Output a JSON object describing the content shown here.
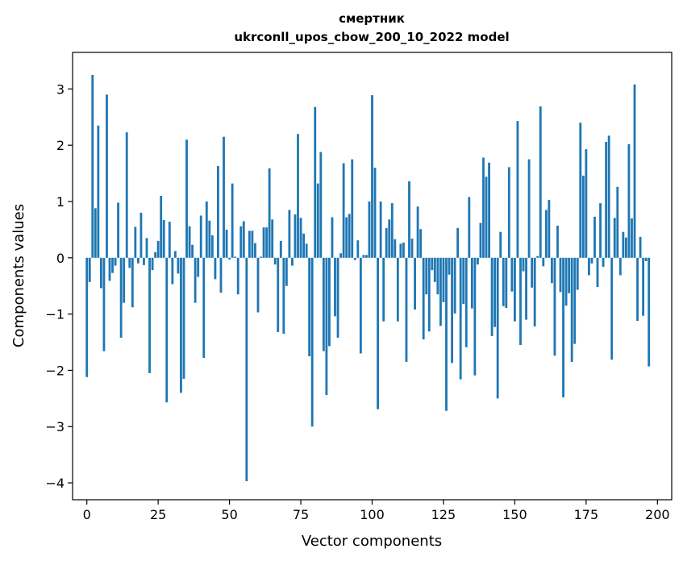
{
  "chart_data": {
    "type": "bar",
    "title": "смертник",
    "subtitle": "ukrconll_upos_cbow_200_10_2022 model",
    "xlabel": "Vector components",
    "ylabel": "Components values",
    "xlim": [
      -5,
      205
    ],
    "ylim": [
      -4.3,
      3.65
    ],
    "xticks": [
      0,
      25,
      50,
      75,
      100,
      125,
      150,
      175,
      200
    ],
    "yticks": [
      -4,
      -3,
      -2,
      -1,
      0,
      1,
      2,
      3
    ],
    "xtick_labels": [
      "0",
      "25",
      "50",
      "75",
      "100",
      "125",
      "150",
      "175",
      "200"
    ],
    "ytick_labels": [
      "−4",
      "−3",
      "−2",
      "−1",
      "0",
      "1",
      "2",
      "3"
    ],
    "bar_color": "#1f77b4",
    "grid": false,
    "values": [
      -2.12,
      -0.43,
      3.25,
      0.88,
      2.35,
      -0.54,
      -1.66,
      2.9,
      -0.41,
      -0.27,
      -0.14,
      0.98,
      -1.42,
      -0.8,
      2.23,
      -0.18,
      -0.88,
      0.55,
      -0.1,
      0.8,
      -0.13,
      0.35,
      -2.05,
      -0.22,
      0.1,
      0.3,
      1.1,
      0.67,
      -2.57,
      0.64,
      -0.47,
      0.12,
      -0.28,
      -2.4,
      -2.15,
      2.1,
      0.56,
      0.23,
      -0.8,
      -0.34,
      0.75,
      -1.78,
      1.0,
      0.66,
      0.4,
      -0.38,
      1.63,
      -0.62,
      2.15,
      0.5,
      -0.03,
      1.32,
      0.02,
      -0.65,
      0.56,
      0.65,
      -3.97,
      0.48,
      0.48,
      0.26,
      -0.97,
      0.02,
      0.54,
      0.54,
      1.59,
      0.68,
      -0.12,
      -1.32,
      0.3,
      -1.35,
      -0.5,
      0.85,
      -0.14,
      0.77,
      2.2,
      0.71,
      0.43,
      0.25,
      -1.75,
      -3.0,
      2.68,
      1.32,
      1.88,
      -1.66,
      -2.44,
      -1.57,
      0.72,
      -1.04,
      -1.42,
      0.08,
      1.68,
      0.72,
      0.78,
      1.75,
      -0.04,
      0.31,
      -1.7,
      0.05,
      0.05,
      1.0,
      2.89,
      1.6,
      -2.69,
      1.0,
      -1.13,
      0.53,
      0.68,
      0.97,
      0.33,
      -1.13,
      0.25,
      0.27,
      -1.85,
      1.36,
      0.34,
      -0.92,
      0.91,
      0.51,
      -1.45,
      -0.65,
      -1.31,
      -0.22,
      -0.43,
      -0.65,
      -1.21,
      -0.79,
      -2.72,
      -0.3,
      -1.87,
      -0.99,
      0.53,
      -2.16,
      -0.82,
      -1.59,
      1.08,
      -0.9,
      -2.09,
      -0.12,
      0.62,
      1.78,
      1.44,
      1.69,
      -1.39,
      -1.23,
      -2.5,
      0.46,
      -0.86,
      -0.89,
      1.61,
      -0.6,
      -1.13,
      2.43,
      -1.55,
      -0.24,
      -1.1,
      1.75,
      -0.53,
      -1.22,
      0.03,
      2.69,
      -0.15,
      0.85,
      1.03,
      -0.45,
      -1.74,
      0.57,
      -0.61,
      -2.48,
      -0.85,
      -0.63,
      -1.85,
      -1.53,
      -0.57,
      2.4,
      1.46,
      1.93,
      -0.31,
      -0.1,
      0.73,
      -0.52,
      0.97,
      -0.16,
      2.06,
      2.17,
      -1.81,
      0.71,
      1.26,
      -0.31,
      0.46,
      0.36,
      2.02,
      0.7,
      3.08,
      -1.12,
      0.37,
      -1.03,
      -0.06,
      -1.93
    ]
  }
}
